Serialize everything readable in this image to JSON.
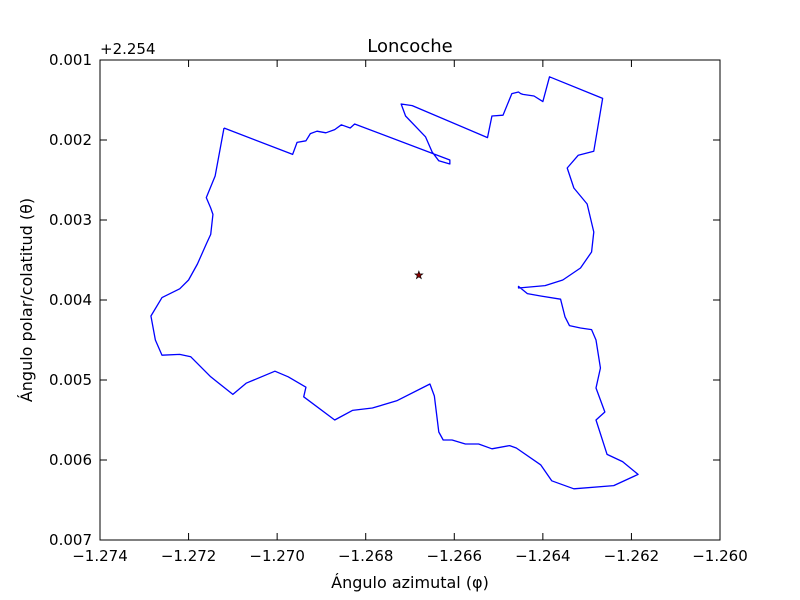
{
  "chart_data": {
    "type": "line",
    "title": "Loncoche",
    "xlabel": "Ángulo azimutal (φ)",
    "ylabel": "Ángulo polar/colatitud (θ)",
    "y_offset_label": "+2.254",
    "xlim": [
      -1.274,
      -1.26
    ],
    "ylim": [
      0.001,
      0.007
    ],
    "y_inverted": true,
    "grid": false,
    "x_ticks": [
      -1.274,
      -1.272,
      -1.27,
      -1.268,
      -1.266,
      -1.264,
      -1.262,
      -1.26
    ],
    "x_tick_labels": [
      "−1.274",
      "−1.272",
      "−1.270",
      "−1.268",
      "−1.266",
      "−1.264",
      "−1.262",
      "−1.260"
    ],
    "y_ticks": [
      0.001,
      0.002,
      0.003,
      0.004,
      0.005,
      0.006,
      0.007
    ],
    "y_tick_labels": [
      "0.001",
      "0.002",
      "0.003",
      "0.004",
      "0.005",
      "0.006",
      "0.007"
    ],
    "series": [
      {
        "kind": "boundary",
        "color": "#0000ff",
        "points": [
          [
            -1.2712,
            0.00185
          ],
          [
            -1.26965,
            0.00218
          ],
          [
            -1.26955,
            0.00203
          ],
          [
            -1.26935,
            0.00201
          ],
          [
            -1.26925,
            0.00192
          ],
          [
            -1.2691,
            0.00189
          ],
          [
            -1.2689,
            0.00191
          ],
          [
            -1.2687,
            0.00187
          ],
          [
            -1.26855,
            0.00181
          ],
          [
            -1.26835,
            0.00185
          ],
          [
            -1.26825,
            0.0018
          ],
          [
            -1.2661,
            0.00225
          ],
          [
            -1.2661,
            0.0023
          ],
          [
            -1.26635,
            0.00226
          ],
          [
            -1.2665,
            0.00215
          ],
          [
            -1.26665,
            0.00196
          ],
          [
            -1.2671,
            0.0017
          ],
          [
            -1.2672,
            0.00155
          ],
          [
            -1.2672,
            0.00155
          ],
          [
            -1.26695,
            0.00157
          ],
          [
            -1.26525,
            0.00197
          ],
          [
            -1.26515,
            0.0017
          ],
          [
            -1.2649,
            0.00169
          ],
          [
            -1.2647,
            0.00142
          ],
          [
            -1.26455,
            0.0014
          ],
          [
            -1.2645,
            0.00142
          ],
          [
            -1.26445,
            0.00143
          ],
          [
            -1.2642,
            0.00145
          ],
          [
            -1.264,
            0.00152
          ],
          [
            -1.26385,
            0.00121
          ],
          [
            -1.26265,
            0.00148
          ],
          [
            -1.26285,
            0.00214
          ],
          [
            -1.2632,
            0.00219
          ],
          [
            -1.26345,
            0.00235
          ],
          [
            -1.2633,
            0.0026
          ],
          [
            -1.263,
            0.0028
          ],
          [
            -1.26285,
            0.00315
          ],
          [
            -1.2629,
            0.0034
          ],
          [
            -1.26315,
            0.0036
          ],
          [
            -1.26355,
            0.00375
          ],
          [
            -1.26395,
            0.00382
          ],
          [
            -1.26455,
            0.00385
          ],
          [
            -1.26455,
            0.00383
          ],
          [
            -1.26435,
            0.00392
          ],
          [
            -1.26405,
            0.00395
          ],
          [
            -1.2636,
            0.00399
          ],
          [
            -1.2635,
            0.00421
          ],
          [
            -1.2634,
            0.00432
          ],
          [
            -1.26315,
            0.00435
          ],
          [
            -1.2629,
            0.00437
          ],
          [
            -1.2628,
            0.0045
          ],
          [
            -1.2627,
            0.00485
          ],
          [
            -1.2628,
            0.0051
          ],
          [
            -1.2626,
            0.0054
          ],
          [
            -1.2628,
            0.0055
          ],
          [
            -1.26255,
            0.00593
          ],
          [
            -1.2622,
            0.00602
          ],
          [
            -1.26185,
            0.00618
          ],
          [
            -1.2624,
            0.00632
          ],
          [
            -1.2633,
            0.00636
          ],
          [
            -1.2638,
            0.00626
          ],
          [
            -1.26405,
            0.00606
          ],
          [
            -1.2646,
            0.00585
          ],
          [
            -1.26475,
            0.00582
          ],
          [
            -1.26515,
            0.00586
          ],
          [
            -1.26545,
            0.0058
          ],
          [
            -1.26575,
            0.0058
          ],
          [
            -1.26605,
            0.00575
          ],
          [
            -1.26625,
            0.00575
          ],
          [
            -1.26635,
            0.00565
          ],
          [
            -1.26645,
            0.0052
          ],
          [
            -1.26655,
            0.00505
          ],
          [
            -1.2673,
            0.00526
          ],
          [
            -1.26785,
            0.00535
          ],
          [
            -1.2683,
            0.00538
          ],
          [
            -1.2687,
            0.0055
          ],
          [
            -1.2694,
            0.00521
          ],
          [
            -1.26935,
            0.00509
          ],
          [
            -1.26975,
            0.00496
          ],
          [
            -1.27005,
            0.00489
          ],
          [
            -1.2707,
            0.00504
          ],
          [
            -1.271,
            0.00518
          ],
          [
            -1.2715,
            0.00496
          ],
          [
            -1.27195,
            0.00471
          ],
          [
            -1.2722,
            0.00468
          ],
          [
            -1.2726,
            0.00469
          ],
          [
            -1.27275,
            0.0045
          ],
          [
            -1.27285,
            0.0042
          ],
          [
            -1.2726,
            0.00397
          ],
          [
            -1.2722,
            0.00386
          ],
          [
            -1.272,
            0.00375
          ],
          [
            -1.2718,
            0.00355
          ],
          [
            -1.2716,
            0.0033
          ],
          [
            -1.2715,
            0.00318
          ],
          [
            -1.27145,
            0.00293
          ],
          [
            -1.2715,
            0.00285
          ],
          [
            -1.2716,
            0.00272
          ],
          [
            -1.2714,
            0.00245
          ],
          [
            -1.2712,
            0.00185
          ]
        ]
      },
      {
        "kind": "marker",
        "name": "centroid",
        "marker": "star",
        "color": "#8b0000",
        "points": [
          [
            -1.2668,
            0.00369
          ]
        ]
      }
    ]
  }
}
